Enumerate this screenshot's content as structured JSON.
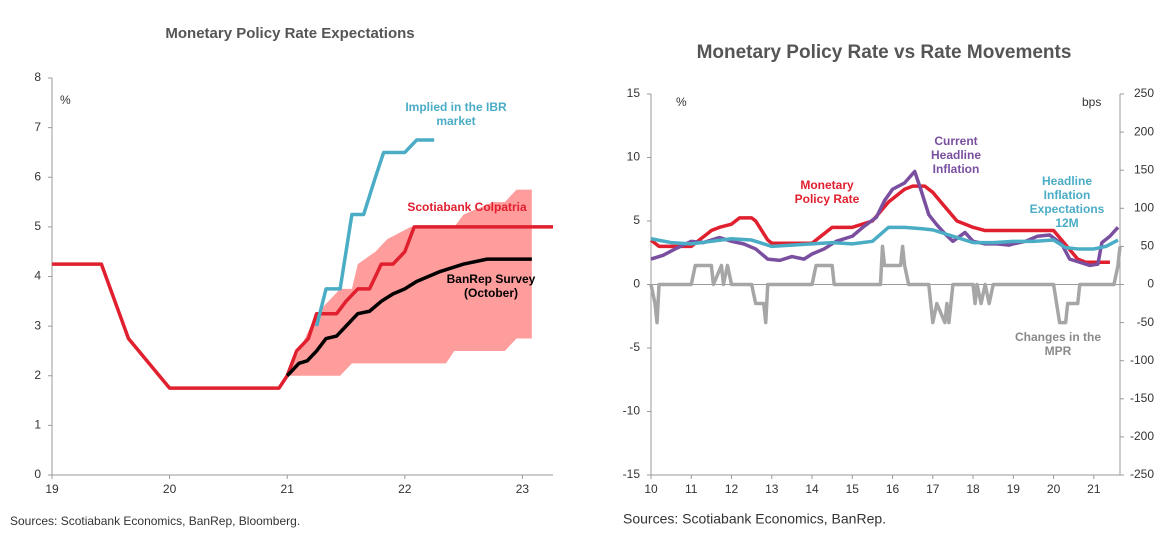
{
  "chart_data": [
    {
      "type": "line",
      "title": "Monetary Policy Rate Expectations",
      "y_unit": "%",
      "source": "Sources: Scotiabank Economics, BanRep, Bloomberg.",
      "xlim": [
        19,
        23.26
      ],
      "xticks": [
        19,
        20,
        21,
        22,
        23
      ],
      "ylim": [
        0,
        8
      ],
      "yticks": [
        0,
        1,
        2,
        3,
        4,
        5,
        6,
        7,
        8
      ],
      "grid": false,
      "series": [
        {
          "name": "Scotiabank Colpatria",
          "color": "#e0202f",
          "x": [
            19,
            19.42,
            19.65,
            20,
            20.93,
            21.0,
            21.08,
            21.18,
            21.25,
            21.42,
            21.5,
            21.6,
            21.7,
            21.8,
            21.9,
            22.0,
            22.08,
            23.26
          ],
          "values": [
            4.25,
            4.25,
            2.75,
            1.75,
            1.75,
            2.0,
            2.5,
            2.75,
            3.25,
            3.25,
            3.5,
            3.75,
            3.75,
            4.25,
            4.25,
            4.5,
            5.0,
            5.0
          ]
        },
        {
          "name": "Implied in the IBR market",
          "color": "#4bacc6",
          "x": [
            21.25,
            21.33,
            21.45,
            21.55,
            21.65,
            21.75,
            21.82,
            22.0,
            22.1,
            22.25
          ],
          "values": [
            3.0,
            3.75,
            3.75,
            5.25,
            5.25,
            6.0,
            6.5,
            6.5,
            6.75,
            6.75
          ]
        },
        {
          "name": "BanRep Survey (October)",
          "color": "#000000",
          "x": [
            21.0,
            21.1,
            21.17,
            21.25,
            21.33,
            21.42,
            21.5,
            21.6,
            21.7,
            21.8,
            21.9,
            22.0,
            22.1,
            22.3,
            22.5,
            22.7,
            23.08
          ],
          "values": [
            2.0,
            2.25,
            2.3,
            2.5,
            2.75,
            2.8,
            3.0,
            3.25,
            3.3,
            3.5,
            3.65,
            3.75,
            3.9,
            4.1,
            4.25,
            4.35,
            4.35
          ]
        }
      ],
      "band": {
        "color": "#ff9c9c",
        "x": [
          21.0,
          21.15,
          21.25,
          21.35,
          21.45,
          21.55,
          21.6,
          21.75,
          21.85,
          22.05,
          22.35,
          22.42,
          22.5,
          22.75,
          22.85,
          22.95,
          23.08
        ],
        "upper": [
          2.0,
          2.75,
          3.25,
          3.5,
          3.75,
          3.75,
          4.25,
          4.5,
          4.75,
          5.0,
          5.0,
          5.0,
          5.25,
          5.5,
          5.5,
          5.75,
          5.75
        ],
        "lower": [
          2.0,
          2.0,
          2.0,
          2.0,
          2.0,
          2.25,
          2.25,
          2.25,
          2.25,
          2.25,
          2.25,
          2.5,
          2.5,
          2.5,
          2.5,
          2.75,
          2.75
        ]
      }
    },
    {
      "type": "line",
      "title": "Monetary Policy Rate vs Rate Movements",
      "y_unit": "%",
      "y2_unit": "bps",
      "source": "Sources: Scotiabank Economics, BanRep.",
      "xlim": [
        10,
        21.65
      ],
      "xticks": [
        10,
        11,
        12,
        13,
        14,
        15,
        16,
        17,
        18,
        19,
        20,
        21
      ],
      "ylim": [
        -15,
        15
      ],
      "yticks": [
        -15,
        -10,
        -5,
        0,
        5,
        10,
        15
      ],
      "y2lim": [
        -250,
        250
      ],
      "y2ticks": [
        -250,
        -200,
        -150,
        -100,
        -50,
        0,
        50,
        100,
        150,
        200,
        250
      ],
      "grid": false,
      "series": [
        {
          "name": "Monetary Policy Rate",
          "color": "#e0202f",
          "x": [
            10.0,
            10.1,
            10.2,
            11.0,
            11.1,
            11.2,
            11.3,
            11.4,
            11.5,
            11.7,
            12.0,
            12.1,
            12.2,
            12.5,
            12.6,
            12.7,
            12.8,
            12.9,
            13.0,
            14.0,
            14.2,
            14.4,
            14.5,
            15.0,
            15.5,
            15.7,
            15.9,
            16.1,
            16.3,
            16.5,
            16.8,
            17.0,
            17.2,
            17.4,
            17.6,
            17.8,
            18.0,
            18.3,
            20.0,
            20.2,
            20.4,
            20.6,
            20.8,
            21.4
          ],
          "values": [
            3.5,
            3.25,
            3.0,
            3.0,
            3.25,
            3.5,
            3.75,
            4.0,
            4.25,
            4.5,
            4.75,
            5.0,
            5.25,
            5.25,
            5.0,
            4.5,
            4.0,
            3.5,
            3.25,
            3.25,
            3.75,
            4.25,
            4.5,
            4.5,
            5.0,
            5.75,
            6.5,
            7.0,
            7.5,
            7.75,
            7.75,
            7.25,
            6.5,
            5.75,
            5.0,
            4.75,
            4.5,
            4.25,
            4.25,
            3.5,
            2.75,
            2.0,
            1.75,
            1.75
          ]
        },
        {
          "name": "Current Headline Inflation",
          "color": "#7a4fa0",
          "x": [
            10.0,
            10.3,
            10.6,
            11.0,
            11.3,
            11.7,
            12.0,
            12.3,
            12.6,
            12.9,
            13.2,
            13.5,
            13.8,
            14.0,
            14.3,
            14.6,
            14.9,
            15.0,
            15.3,
            15.6,
            15.8,
            16.0,
            16.3,
            16.55,
            16.7,
            16.9,
            17.1,
            17.3,
            17.5,
            17.8,
            18.0,
            18.3,
            18.6,
            18.9,
            19.0,
            19.3,
            19.6,
            19.9,
            20.2,
            20.4,
            20.6,
            20.9,
            21.1,
            21.2,
            21.4,
            21.6
          ],
          "values": [
            2.0,
            2.3,
            2.8,
            3.4,
            3.3,
            3.7,
            3.4,
            3.2,
            2.8,
            2.0,
            1.9,
            2.2,
            2.0,
            2.4,
            2.8,
            3.4,
            3.7,
            3.8,
            4.6,
            5.3,
            6.6,
            7.5,
            8.0,
            8.9,
            7.5,
            5.5,
            4.7,
            4.0,
            3.4,
            4.1,
            3.4,
            3.2,
            3.2,
            3.1,
            3.2,
            3.4,
            3.8,
            3.9,
            3.2,
            2.0,
            1.8,
            1.5,
            1.6,
            3.3,
            3.8,
            4.5
          ]
        },
        {
          "name": "Headline Inflation Expectations 12M",
          "color": "#4bacc6",
          "x": [
            10.0,
            10.5,
            11.0,
            11.5,
            12.0,
            12.5,
            13.0,
            13.5,
            14.0,
            14.5,
            15.0,
            15.5,
            15.9,
            16.3,
            16.7,
            17.0,
            17.5,
            18.0,
            18.5,
            19.0,
            19.5,
            20.0,
            20.3,
            20.6,
            21.0,
            21.3,
            21.6
          ],
          "values": [
            3.6,
            3.3,
            3.2,
            3.4,
            3.6,
            3.5,
            3.0,
            3.1,
            3.2,
            3.3,
            3.2,
            3.4,
            4.5,
            4.5,
            4.4,
            4.3,
            3.8,
            3.3,
            3.3,
            3.4,
            3.4,
            3.5,
            2.9,
            2.8,
            2.8,
            3.0,
            3.5
          ]
        },
        {
          "name": "Changes in the MPR",
          "color": "#a6a6a6",
          "axis": "y2",
          "x": [
            10.0,
            10.1,
            10.15,
            10.2,
            11.0,
            11.1,
            11.5,
            11.55,
            11.75,
            11.8,
            11.9,
            12.0,
            12.5,
            12.6,
            12.8,
            12.85,
            12.9,
            14.0,
            14.1,
            14.5,
            14.55,
            15.7,
            15.75,
            15.8,
            16.2,
            16.25,
            16.3,
            16.4,
            16.9,
            16.95,
            17.0,
            17.1,
            17.3,
            17.35,
            17.4,
            17.5,
            18.0,
            18.05,
            18.1,
            18.2,
            18.3,
            18.4,
            18.5,
            20.0,
            20.15,
            20.3,
            20.35,
            20.6,
            20.65,
            21.5,
            21.6,
            21.65
          ],
          "values": [
            0,
            -25,
            -50,
            0,
            0,
            25,
            25,
            0,
            25,
            0,
            25,
            0,
            0,
            -25,
            -25,
            -50,
            0,
            0,
            25,
            25,
            0,
            0,
            50,
            25,
            25,
            50,
            25,
            0,
            0,
            -25,
            -50,
            -25,
            -50,
            -25,
            -50,
            0,
            0,
            -25,
            0,
            -25,
            0,
            -25,
            0,
            0,
            -50,
            -50,
            -25,
            -25,
            0,
            0,
            25,
            50
          ]
        }
      ]
    }
  ]
}
